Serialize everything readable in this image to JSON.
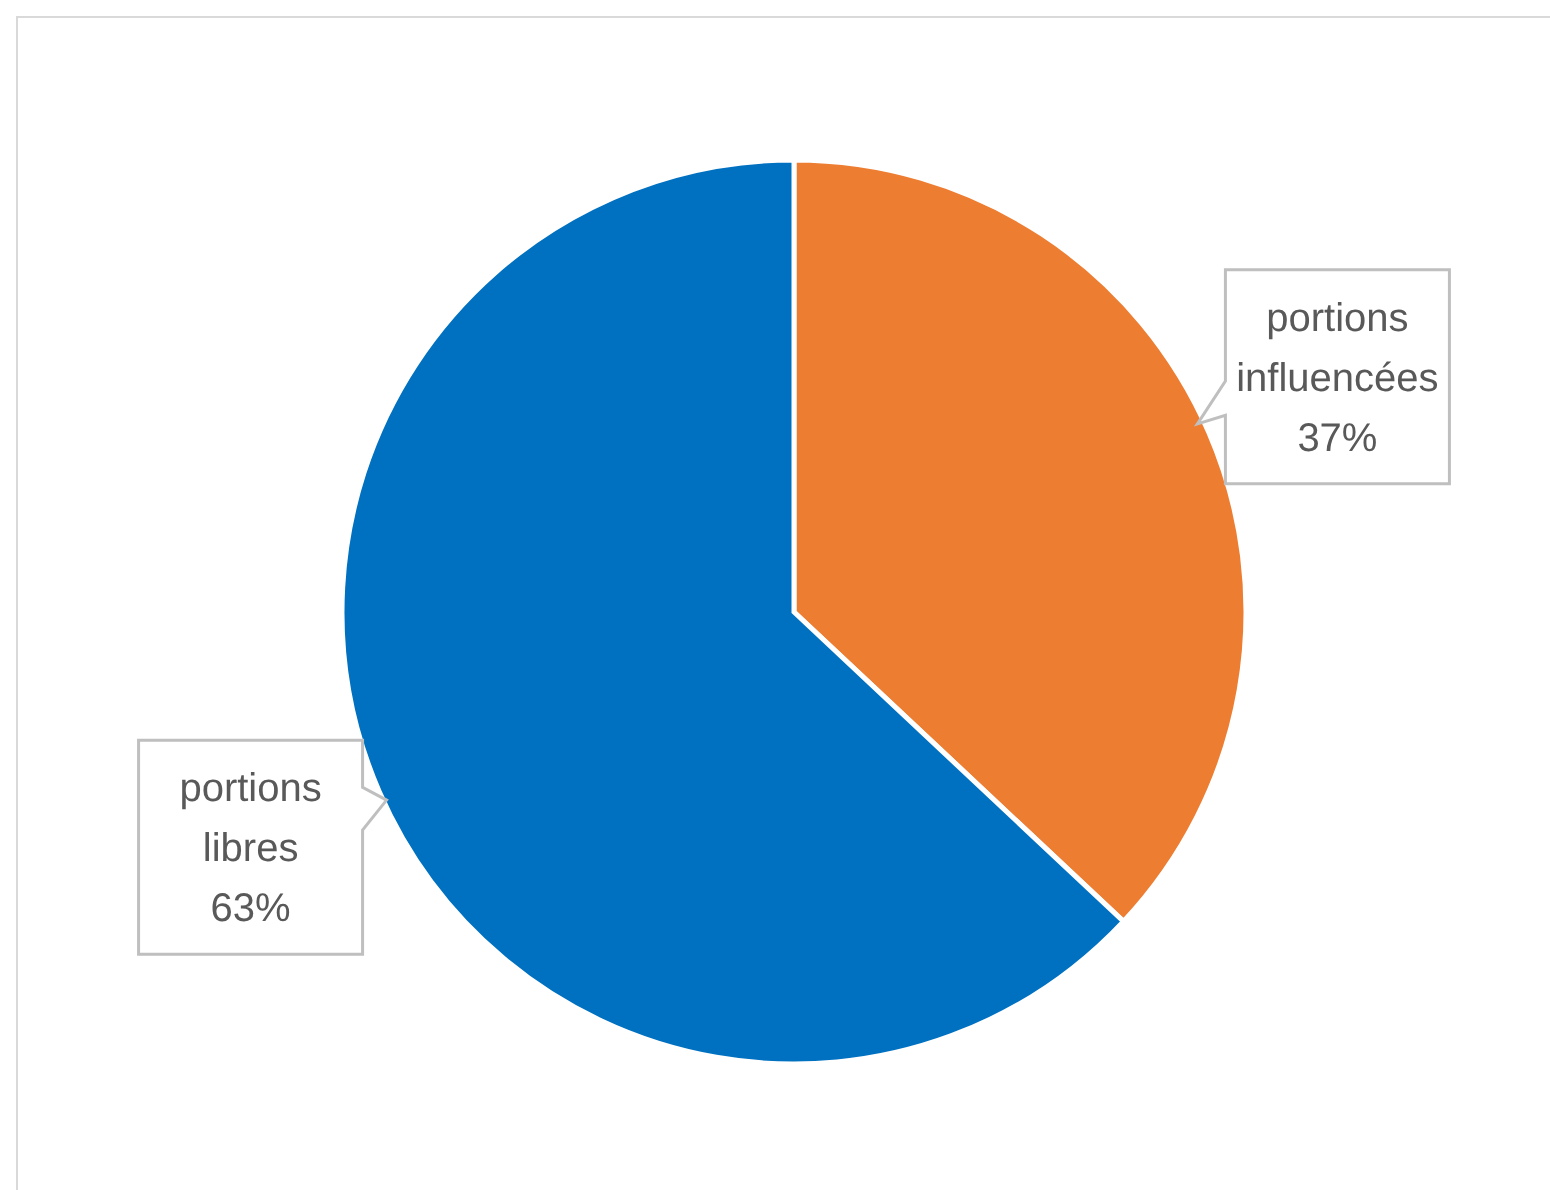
{
  "chart_data": {
    "type": "pie",
    "categories": [
      "portions influencées",
      "portions libres"
    ],
    "values": [
      37,
      63
    ],
    "colors": [
      "#ed7d31",
      "#0070c0"
    ],
    "value_labels": [
      "37%",
      "63%"
    ]
  }
}
